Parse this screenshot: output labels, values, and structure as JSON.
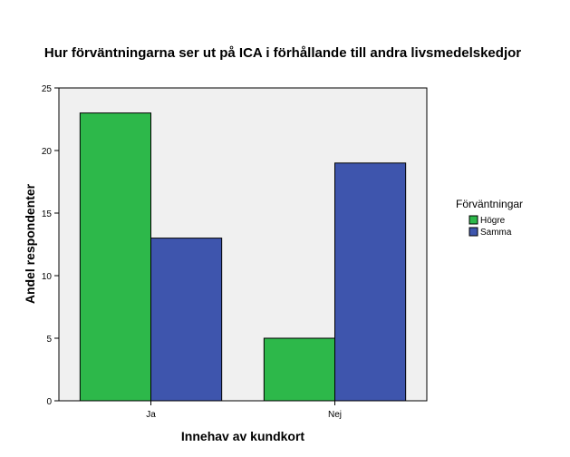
{
  "chart_data": {
    "type": "bar",
    "title": "Hur förväntningarna ser ut på ICA i förhållande till andra livsmedelskedjor",
    "xlabel": "Innehav av kundkort",
    "ylabel": "Andel respondenter",
    "categories": [
      "Ja",
      "Nej"
    ],
    "series": [
      {
        "name": "Högre",
        "values": [
          23,
          5
        ],
        "color": "#2db84a"
      },
      {
        "name": "Samma",
        "values": [
          13,
          19
        ],
        "color": "#3e55ad"
      }
    ],
    "ylim": [
      0,
      25
    ],
    "yticks": [
      0,
      5,
      10,
      15,
      20,
      25
    ],
    "grid": false,
    "plot_background": "#f0f0f0",
    "legend": {
      "title": "Förväntningar",
      "placement": "right"
    }
  }
}
